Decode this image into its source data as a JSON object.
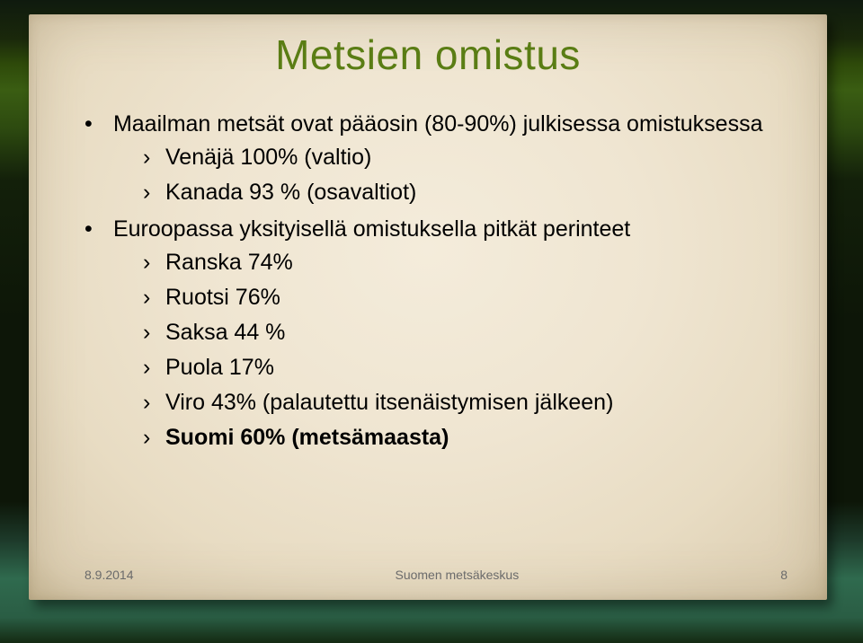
{
  "title": {
    "text": "Metsien omistus",
    "color": "#5a7d14",
    "fontsize": 46
  },
  "body_color": "#000000",
  "bullets_lvl1": [
    {
      "text": "Maailman metsät ovat pääosin (80-90%) julkisessa omistuksessa",
      "children": [
        {
          "text": "Venäjä 100% (valtio)"
        },
        {
          "text": "Kanada 93 % (osavaltiot)"
        }
      ]
    },
    {
      "text": "Euroopassa yksityisellä omistuksella pitkät perinteet",
      "children": [
        {
          "text": "Ranska 74%"
        },
        {
          "text": "Ruotsi 76%"
        },
        {
          "text": "Saksa 44 %"
        },
        {
          "text": "Puola 17%"
        },
        {
          "text": "Viro 43% (palautettu itsenäistymisen jälkeen)"
        },
        {
          "text": "Suomi 60% (metsämaasta)",
          "bold": true
        }
      ]
    }
  ],
  "footer": {
    "date": "8.9.2014",
    "org": "Suomen metsäkeskus",
    "page": "8",
    "color": "#6b6b6b",
    "fontsize": 14
  },
  "paper_bg_colors": [
    "#f4ecdb",
    "#e8dcc3",
    "#d2c3a2"
  ],
  "stage_bg_colors": [
    "#0f1a0e",
    "#2e4a0a",
    "#0d1608",
    "#2f6a4e"
  ]
}
